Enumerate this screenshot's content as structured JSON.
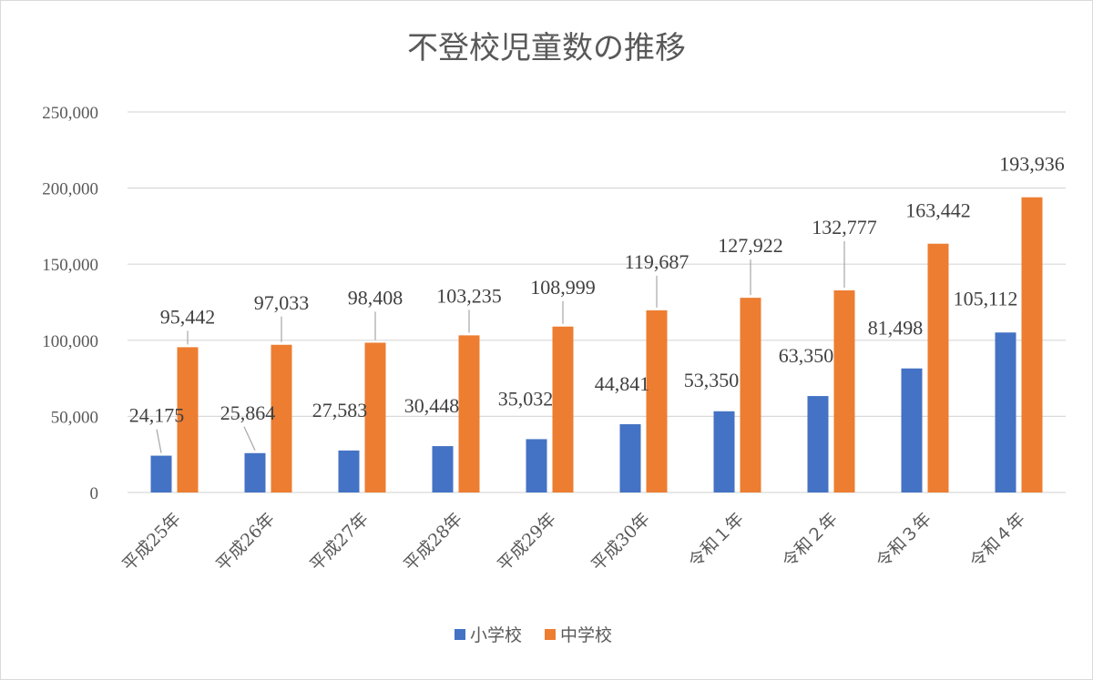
{
  "chart_data": {
    "type": "bar",
    "title": "不登校児童数の推移",
    "categories": [
      "平成25年",
      "平成26年",
      "平成27年",
      "平成28年",
      "平成29年",
      "平成30年",
      "令和１年",
      "令和２年",
      "令和３年",
      "令和４年"
    ],
    "series": [
      {
        "name": "小学校",
        "color": "#4472C4",
        "values": [
          24175,
          25864,
          27583,
          30448,
          35032,
          44841,
          53350,
          63350,
          81498,
          105112
        ]
      },
      {
        "name": "中学校",
        "color": "#ED7D31",
        "values": [
          95442,
          97033,
          98408,
          103235,
          108999,
          119687,
          127922,
          132777,
          163442,
          193936
        ]
      }
    ],
    "data_labels": [
      [
        "24,175",
        "25,864",
        "27,583",
        "30,448",
        "35,032",
        "44,841",
        "53,350",
        "63,350",
        "81,498",
        "105,112"
      ],
      [
        "95,442",
        "97,033",
        "98,408",
        "103,235",
        "108,999",
        "119,687",
        "127,922",
        "132,777",
        "163,442",
        "193,936"
      ]
    ],
    "y_ticks": [
      "0",
      "50,000",
      "100,000",
      "150,000",
      "200,000",
      "250,000"
    ],
    "ylim": [
      0,
      250000
    ],
    "grid": true,
    "legend_position": "bottom"
  }
}
